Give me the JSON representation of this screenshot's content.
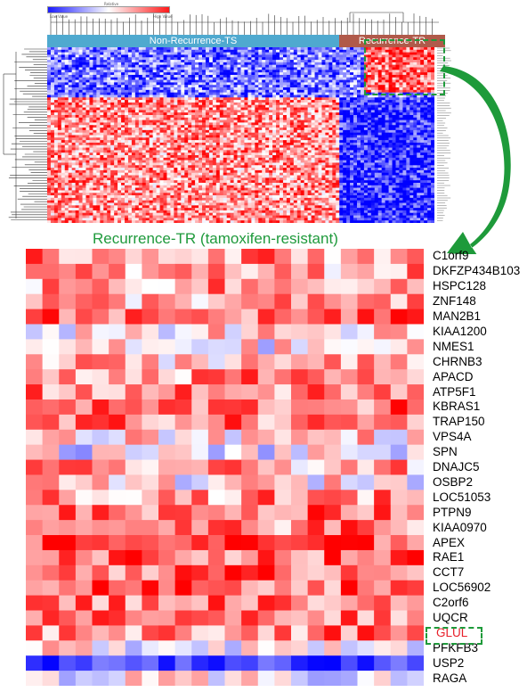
{
  "legend": {
    "left_label": "Low Value",
    "right_label": "High Value",
    "top_label": "Relative",
    "low_color": "#1a1aff",
    "mid_color": "#ffffff",
    "high_color": "#ff1a1a"
  },
  "groups": {
    "non_recurrence": "Non-Recurrence-TS",
    "recurrence": "Recurrence-TR",
    "non_recurrence_color": "#4fa9cf",
    "recurrence_color": "#b05a4a"
  },
  "zoom": {
    "title": "Recurrence-TR (tamoxifen-resistant)",
    "title_color": "#1f9a3c",
    "highlight_gene": "GLUL",
    "highlight_color": "#e8202a",
    "box_color": "#1e9a3a"
  },
  "genes": [
    "C1orf9",
    "DKFZP434B103",
    "HSPC128",
    "ZNF148",
    "MAN2B1",
    "KIAA1200",
    "NMES1",
    "CHRNB3",
    "APACD",
    "ATP5F1",
    "KBRAS1",
    "TRAP150",
    "VPS4A",
    "SPN",
    "DNAJC5",
    "OSBP2",
    "LOC51053",
    "PTPN9",
    "KIAA0970",
    "APEX",
    "RAE1",
    "CCT7",
    "LOC56902",
    "C2orf6",
    "UQCR",
    "GLUL",
    "PFKFB3",
    "USP2",
    "RAGA"
  ]
}
